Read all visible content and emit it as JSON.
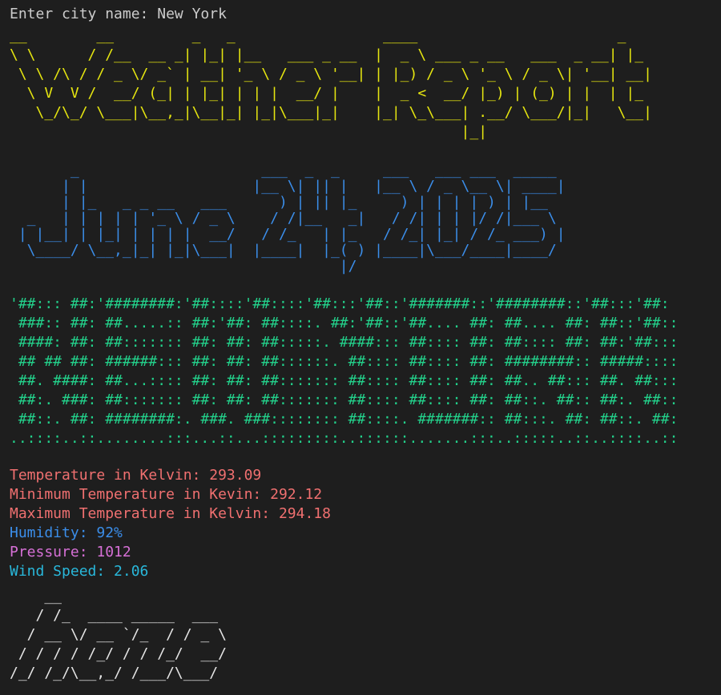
{
  "prompt": "Enter city name: New York",
  "title_art": [
    "__        __         _   _                 ____                       _   ",
    "\\ \\      / /__  __ _| |_| |__   ___ _ __  |  _ \\ ___ _ __   ___  _ __| |_ ",
    " \\ \\ /\\ / / _ \\/ _` | __| '_ \\ / _ \\ '__| | |_) / _ \\ '_ \\ / _ \\| '__| __|",
    "  \\ V  V /  __/ (_| | |_| | | |  __/ |    |  _ <  __/ |_) | (_) | |  | |_ ",
    "   \\_/\\_/ \\___|\\__,_|\\__|_| |_|\\___|_|    |_| \\_\\___| .__/ \\___/|_|   \\__|",
    "                                                    |_|                   "
  ],
  "date_art": [
    "       _                     ___  _  _     ___   ___ ___  _____ ",
    "      | |                   |__ \\| || |   |__ \\ / _ \\__ \\| ____|",
    "      | |_   _ _ __   ___      ) | || |_     ) | | | | ) | |__  ",
    "  _   | | | | | '_ \\ / _ \\    / /|__   _|   / /| | | |/ /|___ \\ ",
    " | |__| | |_| | | | |  __/   / /_   | |_   / /_| |_| / /_ ___) |",
    "  \\____/ \\__,_|_| |_|\\___|  |____|  |_( ) |____|\\___/____|____/ ",
    "                                      |/                        "
  ],
  "city_art": [
    "'##::: ##:'########:'##::::'##::::'##:::'##::'#######::'########::'##:::'##:",
    " ###:: ##: ##.....:: ##:'##: ##::::. ##:'##::'##.... ##: ##.... ##: ##::'##::",
    " ####: ##: ##::::::: ##: ##: ##:::::. ####::: ##:::: ##: ##:::: ##: ##:'##:::",
    " ## ## ##: ######::: ##: ##: ##::::::. ##:::: ##:::: ##: ########:: #####::::",
    " ##. ####: ##...:::: ##: ##: ##::::::: ##:::: ##:::: ##: ##.. ##::: ##. ##:::",
    " ##:. ###: ##::::::: ##: ##: ##::::::: ##:::: ##:::: ##: ##::. ##:: ##:. ##::",
    " ##::. ##: ########:. ###. ###:::::::: ##::::. #######:: ##:::. ##: ##::. ##:",
    "..::::..::........:::...::...:::::::::..::::::.......:::..:::::..::..::::..::"
  ],
  "readings": [
    {
      "text": "Temperature in Kelvin: 293.09",
      "color": "#f07070"
    },
    {
      "text": "Minimum Temperature in Kevin: 292.12",
      "color": "#f07070"
    },
    {
      "text": "Maximum Temperature in Kelvin: 294.18",
      "color": "#f07070"
    },
    {
      "text": "Humidity: 92%",
      "color": "#3b8eea"
    },
    {
      "text": "Pressure: 1012",
      "color": "#d670d6"
    },
    {
      "text": "Wind Speed: 2.06",
      "color": "#29b8db"
    }
  ],
  "condition_art": [
    "    __",
    "   / /_  ____ _____  ___",
    "  / __ \\/ __ `/_  / / _ \\",
    " / / / / /_/ / / /_/  __/",
    "/_/ /_/\\__,_/ /___/\\___/"
  ]
}
